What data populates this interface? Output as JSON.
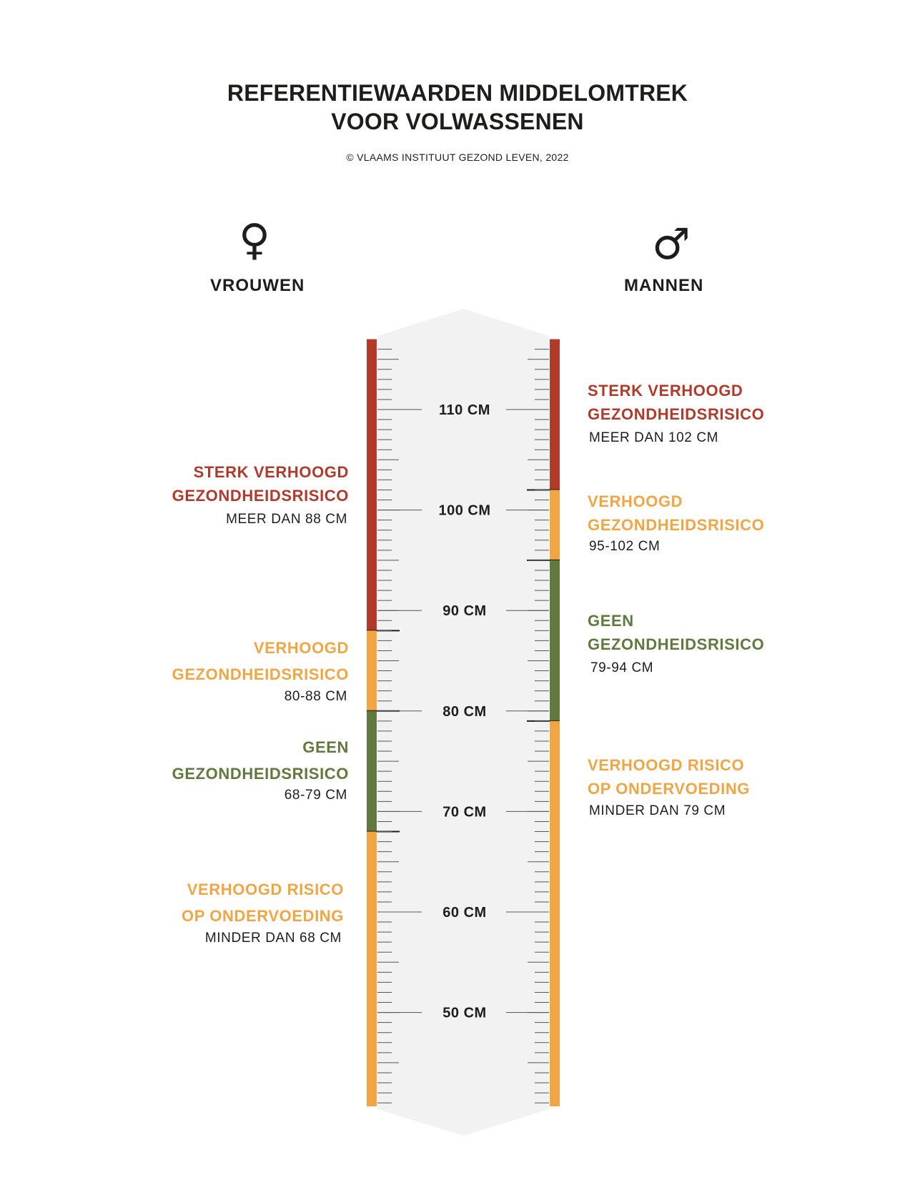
{
  "title_line1": "REFERENTIEWAARDEN MIDDELOMTREK",
  "title_line2": "VOOR VOLWASSENEN",
  "copyright": "© VLAAMS INSTITUUT GEZOND LEVEN, 2022",
  "women": {
    "symbol": "♀",
    "label": "VROUWEN",
    "zones": [
      {
        "line1": "STERK VERHOOGD",
        "line2": "GEZONDHEIDSRISICO",
        "range": "MEER DAN 88 CM",
        "from_cm": 88,
        "to_cm": 117,
        "color": "#b23a2a"
      },
      {
        "line1": "VERHOOGD",
        "line2": "GEZONDHEIDSRISICO",
        "range": "80-88 CM",
        "from_cm": 80,
        "to_cm": 88,
        "color": "#f1a543"
      },
      {
        "line1": "GEEN",
        "line2": "GEZONDHEIDSRISICO",
        "range": "68-79 CM",
        "from_cm": 68,
        "to_cm": 80,
        "color": "#5f7a3c"
      },
      {
        "line1": "VERHOOGD RISICO",
        "line2": "OP ONDERVOEDING",
        "range": "MINDER DAN 68 CM",
        "from_cm": 40,
        "to_cm": 68,
        "color": "#f1a543"
      }
    ]
  },
  "men": {
    "symbol": "♂",
    "label": "MANNEN",
    "zones": [
      {
        "line1": "STERK VERHOOGD",
        "line2": "GEZONDHEIDSRISICO",
        "range": "MEER DAN 102 CM",
        "from_cm": 102,
        "to_cm": 117,
        "color": "#b23a2a"
      },
      {
        "line1": "VERHOOGD",
        "line2": "GEZONDHEIDSRISICO",
        "range": "95-102 CM",
        "from_cm": 95,
        "to_cm": 102,
        "color": "#f1a543"
      },
      {
        "line1": "GEEN",
        "line2": "GEZONDHEIDSRISICO",
        "range": "79-94 CM",
        "from_cm": 79,
        "to_cm": 95,
        "color": "#5f7a3c"
      },
      {
        "line1": "VERHOOGD RISICO",
        "line2": "OP ONDERVOEDING",
        "range": "MINDER DAN 79 CM",
        "from_cm": 40,
        "to_cm": 79,
        "color": "#f1a543"
      }
    ]
  },
  "scale": {
    "min_cm": 40,
    "max_cm": 117,
    "labels": [
      {
        "cm": 110,
        "text": "110 CM"
      },
      {
        "cm": 100,
        "text": "100 CM"
      },
      {
        "cm": 90,
        "text": "90 CM"
      },
      {
        "cm": 80,
        "text": "80 CM"
      },
      {
        "cm": 70,
        "text": "70 CM"
      },
      {
        "cm": 60,
        "text": "60 CM"
      },
      {
        "cm": 50,
        "text": "50 CM"
      }
    ]
  },
  "colors": {
    "red": "#b23a2a",
    "orange": "#f1a543",
    "green": "#5f7a3c",
    "band": "#f2f2f2",
    "ink": "#1d1d1b"
  }
}
